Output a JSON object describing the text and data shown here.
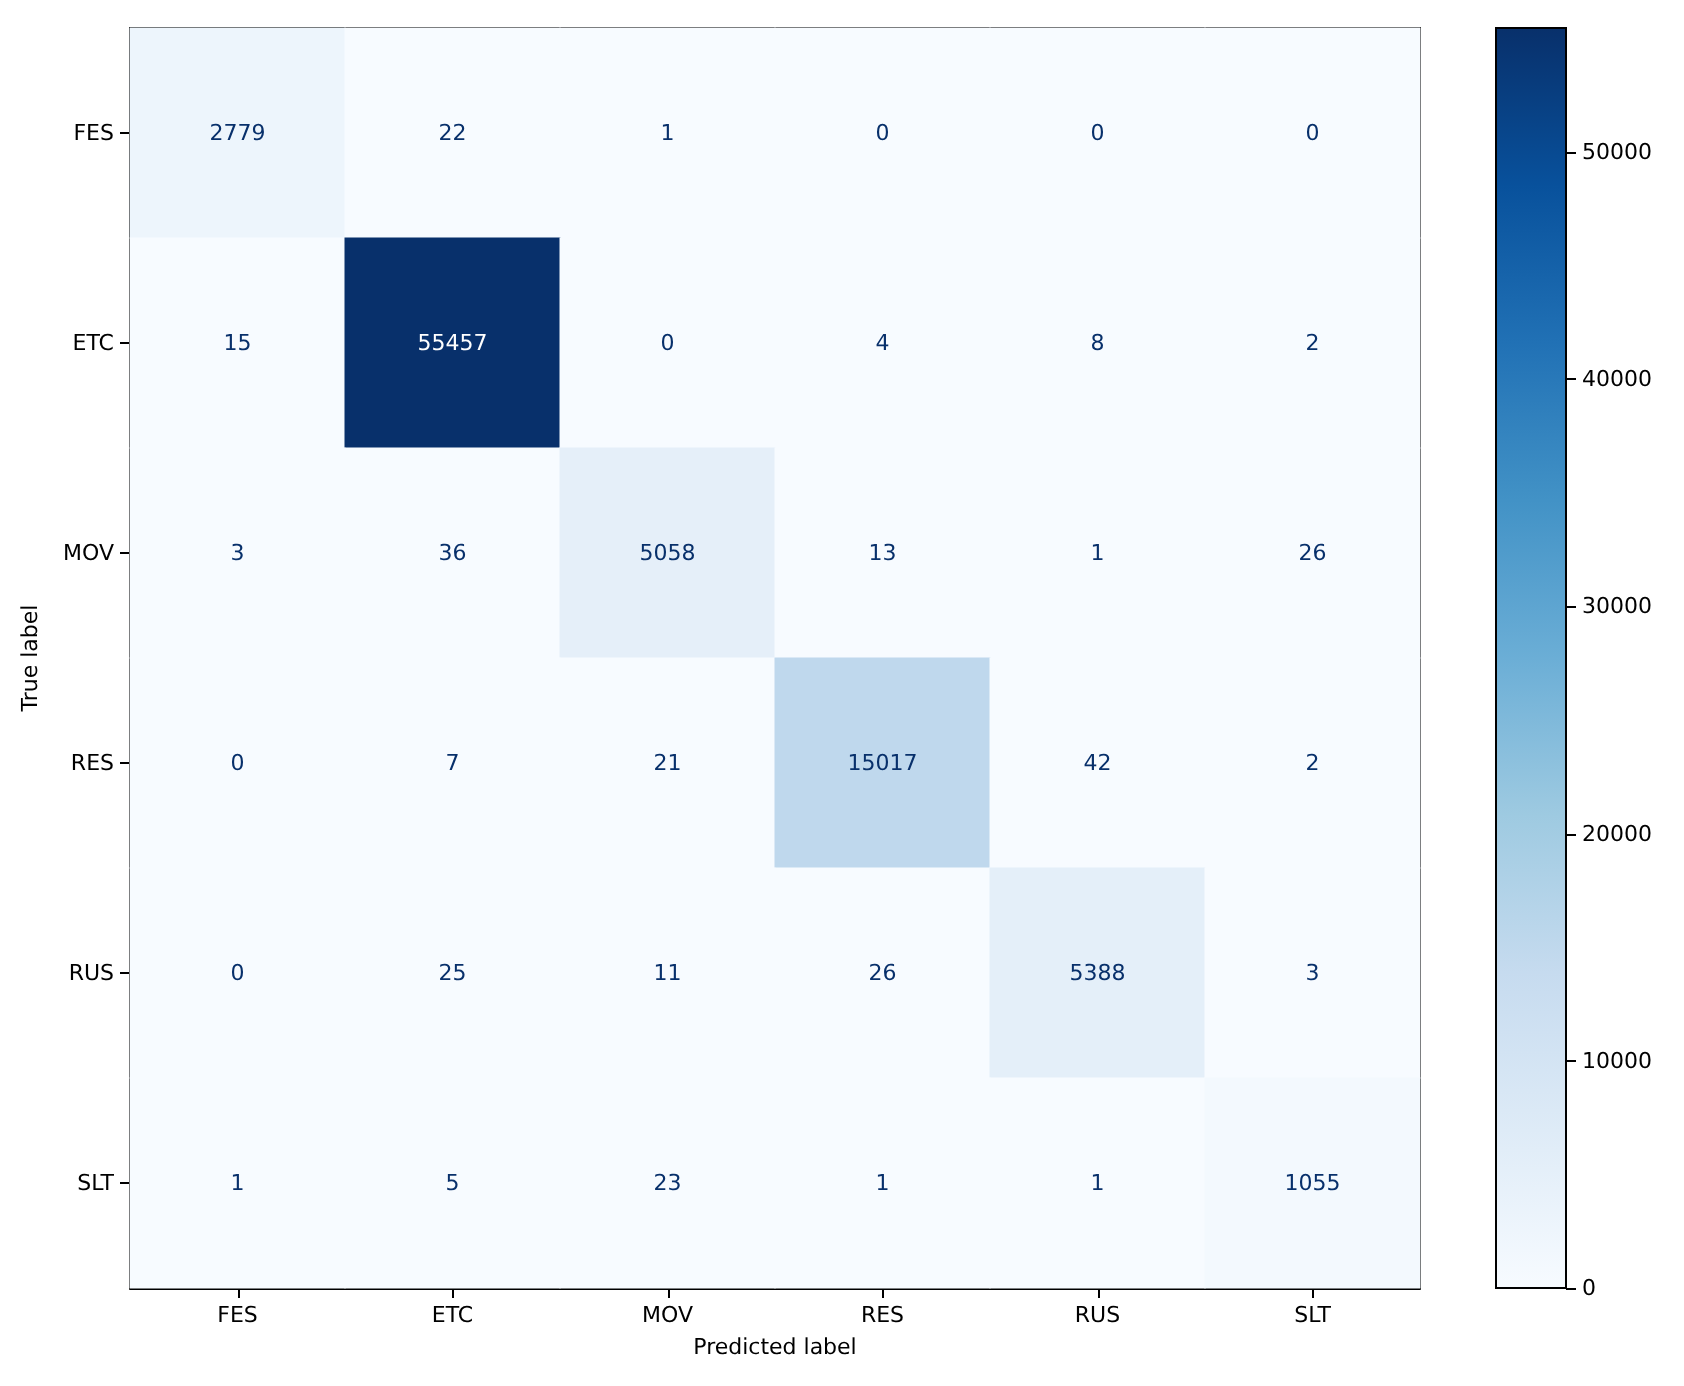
{
  "chart_data": {
    "type": "heatmap",
    "xlabel": "Predicted label",
    "ylabel": "True label",
    "categories": [
      "FES",
      "ETC",
      "MOV",
      "RES",
      "RUS",
      "SLT"
    ],
    "y_categories": [
      "FES",
      "ETC",
      "MOV",
      "RES",
      "RUS",
      "SLT"
    ],
    "cells": [
      [
        2779,
        22,
        1,
        0,
        0,
        0
      ],
      [
        15,
        55457,
        0,
        4,
        8,
        2
      ],
      [
        3,
        36,
        5058,
        13,
        1,
        26
      ],
      [
        0,
        7,
        21,
        15017,
        42,
        2
      ],
      [
        0,
        25,
        11,
        26,
        5388,
        3
      ],
      [
        1,
        5,
        23,
        1,
        1,
        1055
      ]
    ],
    "data_labels": true,
    "clim": [
      0,
      55457
    ],
    "cticks": [
      0,
      10000,
      20000,
      30000,
      40000,
      50000
    ]
  }
}
